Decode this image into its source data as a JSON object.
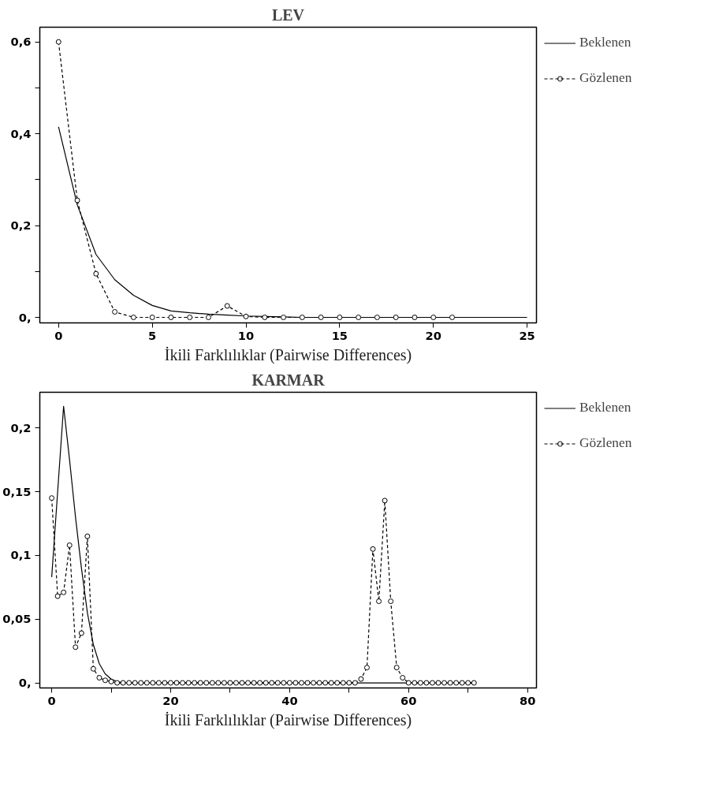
{
  "chart_data": [
    {
      "type": "line",
      "title": "LEV",
      "xlabel": "İkili Farklılıklar (Pairwise Differences)",
      "legend": "right",
      "grid": false,
      "xlim": [
        -1,
        25.5
      ],
      "ylim": [
        -0.012,
        0.632
      ],
      "xticks": [
        0,
        5,
        10,
        15,
        20,
        25
      ],
      "yticks": [
        {
          "value": 0,
          "label": "0,"
        },
        {
          "value": 0.1,
          "label": null
        },
        {
          "value": 0.2,
          "label": "0,2"
        },
        {
          "value": 0.3,
          "label": null
        },
        {
          "value": 0.4,
          "label": "0,4"
        },
        {
          "value": 0.5,
          "label": null
        },
        {
          "value": 0.6,
          "label": "0,6"
        }
      ],
      "series": [
        {
          "name": "Beklenen",
          "color": "#000000",
          "line_style": "solid",
          "marker": "none",
          "x": [
            0,
            1,
            2,
            3,
            4,
            5,
            6,
            7,
            8,
            9,
            10,
            11,
            12,
            13,
            14,
            15,
            16,
            17,
            18,
            19,
            20,
            21,
            22,
            23,
            24,
            25
          ],
          "values": [
            0.415,
            0.245,
            0.137,
            0.082,
            0.048,
            0.026,
            0.014,
            0.01,
            0.007,
            0.005,
            0.003,
            0.002,
            0.001,
            0,
            0,
            0,
            0,
            0,
            0,
            0,
            0,
            0,
            0,
            0,
            0,
            0
          ]
        },
        {
          "name": "Gözlenen",
          "color": "#000000",
          "line_style": "dashed",
          "marker": "circle",
          "x": [
            0,
            1,
            2,
            3,
            4,
            5,
            6,
            7,
            8,
            9,
            10,
            11,
            12,
            13,
            14,
            15,
            16,
            17,
            18,
            19,
            20,
            21
          ],
          "values": [
            0.6,
            0.255,
            0.095,
            0.012,
            0,
            0,
            0,
            0,
            0,
            0.025,
            0.002,
            0,
            0,
            0,
            0,
            0,
            0,
            0,
            0,
            0,
            0,
            0
          ]
        }
      ]
    },
    {
      "type": "line",
      "title": "KARMAR",
      "xlabel": "İkili Farklılıklar (Pairwise Differences)",
      "legend": "right",
      "grid": false,
      "xlim": [
        -2,
        81.5
      ],
      "ylim": [
        -0.004,
        0.228
      ],
      "xticks": [
        0,
        {
          "value": 10,
          "label": null
        },
        20,
        {
          "value": 30,
          "label": null
        },
        40,
        {
          "value": 50,
          "label": null
        },
        60,
        {
          "value": 70,
          "label": null
        },
        80
      ],
      "yticks": [
        {
          "value": 0,
          "label": "0,"
        },
        {
          "value": 0.05,
          "label": "0,05"
        },
        {
          "value": 0.1,
          "label": "0,1"
        },
        {
          "value": 0.15,
          "label": "0,15"
        },
        {
          "value": 0.2,
          "label": "0,2"
        }
      ],
      "series": [
        {
          "name": "Beklenen",
          "color": "#000000",
          "line_style": "solid",
          "marker": "none",
          "x": [
            0,
            1,
            2,
            3,
            4,
            5,
            6,
            7,
            8,
            9,
            10,
            11,
            12,
            13,
            20,
            30,
            40,
            50,
            60,
            71
          ],
          "values": [
            0.083,
            0.15,
            0.217,
            0.175,
            0.13,
            0.09,
            0.055,
            0.03,
            0.015,
            0.007,
            0.003,
            0.001,
            0,
            0,
            0,
            0,
            0,
            0,
            0,
            0
          ]
        },
        {
          "name": "Gözlenen",
          "color": "#000000",
          "line_style": "dashed",
          "marker": "circle",
          "x": [
            0,
            1,
            2,
            3,
            4,
            5,
            6,
            7,
            8,
            9,
            10,
            11,
            12,
            13,
            14,
            15,
            16,
            17,
            18,
            19,
            20,
            21,
            22,
            23,
            24,
            25,
            26,
            27,
            28,
            29,
            30,
            31,
            32,
            33,
            34,
            35,
            36,
            37,
            38,
            39,
            40,
            41,
            42,
            43,
            44,
            45,
            46,
            47,
            48,
            49,
            50,
            51,
            52,
            53,
            54,
            55,
            56,
            57,
            58,
            59,
            60,
            61,
            62,
            63,
            64,
            65,
            66,
            67,
            68,
            69,
            70,
            71
          ],
          "values": [
            0.145,
            0.068,
            0.071,
            0.108,
            0.028,
            0.039,
            0.115,
            0.011,
            0.004,
            0.002,
            0.001,
            0,
            0,
            0,
            0,
            0,
            0,
            0,
            0,
            0,
            0,
            0,
            0,
            0,
            0,
            0,
            0,
            0,
            0,
            0,
            0,
            0,
            0,
            0,
            0,
            0,
            0,
            0,
            0,
            0,
            0,
            0,
            0,
            0,
            0,
            0,
            0,
            0,
            0,
            0,
            0,
            0,
            0.003,
            0.012,
            0.105,
            0.064,
            0.143,
            0.064,
            0.012,
            0.004,
            0,
            0,
            0,
            0,
            0,
            0,
            0,
            0,
            0,
            0,
            0,
            0
          ]
        }
      ]
    }
  ]
}
